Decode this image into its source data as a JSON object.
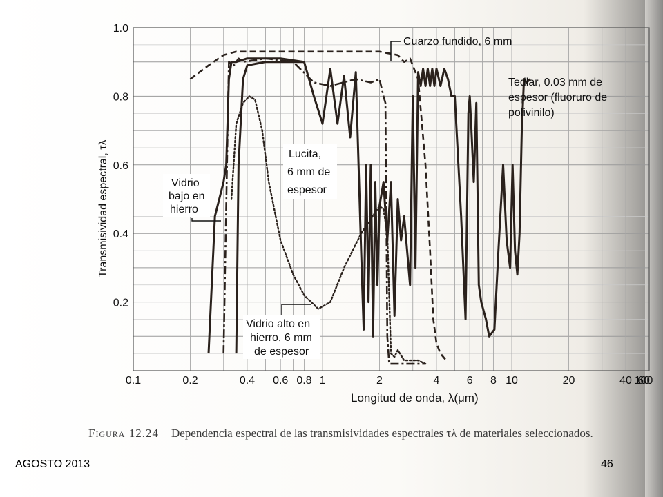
{
  "chart_data": {
    "type": "line",
    "xlabel": "Longitud de onda, λ(μm)",
    "ylabel": "Transmisividad espectral, τλ",
    "xscale": "log",
    "xlim": [
      0.1,
      100
    ],
    "ylim": [
      0,
      1.0
    ],
    "grid": true,
    "xticks": [
      0.1,
      0.2,
      0.4,
      0.6,
      0.8,
      1,
      2,
      4,
      6,
      8,
      10,
      20,
      40,
      60,
      100
    ],
    "xtick_labels": [
      "0.1",
      "0.2",
      "0.4",
      "0.6",
      "0.8",
      "1",
      "2",
      "4",
      "6",
      "8",
      "10",
      "20",
      "40",
      "60",
      "100"
    ],
    "yticks": [
      0.2,
      0.4,
      0.6,
      0.8,
      1.0
    ],
    "ytick_labels": [
      "0.2",
      "0.4",
      "0.6",
      "0.8",
      "1.0"
    ],
    "series": [
      {
        "name": "Cuarzo fundido, 6 mm",
        "style": "dashed",
        "x": [
          0.2,
          0.25,
          0.3,
          0.35,
          0.5,
          1.0,
          2.0,
          2.5,
          2.7,
          2.9,
          3.2,
          3.5,
          3.7,
          3.85,
          4.0,
          4.2,
          4.5
        ],
        "y": [
          0.85,
          0.89,
          0.92,
          0.93,
          0.93,
          0.93,
          0.93,
          0.92,
          0.9,
          0.91,
          0.85,
          0.6,
          0.35,
          0.15,
          0.08,
          0.05,
          0.03
        ]
      },
      {
        "name": "Tedlar, 0.03 mm de espesor (fluoruro de polivinilo)",
        "style": "solid",
        "x": [
          0.35,
          0.36,
          0.38,
          0.4,
          0.5,
          0.7,
          0.8,
          0.9,
          1.0,
          1.1,
          1.2,
          1.3,
          1.4,
          1.5,
          1.6,
          1.65,
          1.7,
          1.75,
          1.8,
          1.85,
          1.9,
          1.95,
          2.0,
          2.1,
          2.2,
          2.3,
          2.4,
          2.5,
          2.6,
          2.7,
          2.8,
          2.9,
          3.0,
          3.1,
          3.2,
          3.3,
          3.4,
          3.5,
          3.6,
          3.7,
          3.8,
          3.9,
          4.0,
          4.2,
          4.4,
          4.6,
          4.8,
          5.0,
          5.4,
          5.7,
          5.9,
          6.0,
          6.1,
          6.3,
          6.5,
          6.7,
          6.9,
          7.3,
          7.6,
          8.1,
          8.5,
          9.0,
          9.4,
          9.8,
          10.1,
          10.4,
          10.7,
          11.0,
          11.3,
          11.6,
          12.0,
          12.5
        ],
        "y": [
          0.05,
          0.6,
          0.85,
          0.89,
          0.9,
          0.9,
          0.9,
          0.8,
          0.72,
          0.88,
          0.72,
          0.86,
          0.68,
          0.87,
          0.35,
          0.12,
          0.6,
          0.2,
          0.6,
          0.1,
          0.55,
          0.25,
          0.48,
          0.55,
          0.38,
          0.55,
          0.16,
          0.5,
          0.38,
          0.45,
          0.35,
          0.25,
          0.8,
          0.3,
          0.87,
          0.83,
          0.88,
          0.83,
          0.88,
          0.83,
          0.88,
          0.83,
          0.88,
          0.83,
          0.88,
          0.85,
          0.8,
          0.8,
          0.45,
          0.15,
          0.75,
          0.8,
          0.72,
          0.55,
          0.78,
          0.25,
          0.2,
          0.15,
          0.1,
          0.12,
          0.35,
          0.6,
          0.38,
          0.3,
          0.6,
          0.35,
          0.28,
          0.4,
          0.7,
          0.85,
          0.84,
          0.85
        ]
      },
      {
        "name": "Lucita, 6 mm de espesor",
        "style": "dash-dot",
        "x": [
          0.3,
          0.32,
          0.34,
          0.36,
          0.38,
          0.5,
          0.7,
          0.9,
          1.1,
          1.5,
          1.8,
          2.0,
          2.1,
          2.15,
          2.2,
          2.25,
          2.5,
          3.0,
          3.5
        ],
        "y": [
          0.05,
          0.9,
          0.89,
          0.91,
          0.9,
          0.91,
          0.9,
          0.84,
          0.83,
          0.85,
          0.84,
          0.85,
          0.8,
          0.78,
          0.1,
          0.02,
          0.02,
          0.02,
          0.02
        ]
      },
      {
        "name": "Vidrio bajo en hierro",
        "style": "solid",
        "x": [
          0.25,
          0.27,
          0.3,
          0.31,
          0.32,
          0.33,
          0.35,
          0.4,
          0.6,
          0.8
        ],
        "y": [
          0.05,
          0.45,
          0.55,
          0.6,
          0.85,
          0.9,
          0.9,
          0.91,
          0.91,
          0.9
        ]
      },
      {
        "name": "Vidrio alto en hierro, 6 mm de espesor",
        "style": "dotted",
        "x": [
          0.33,
          0.35,
          0.38,
          0.41,
          0.44,
          0.48,
          0.52,
          0.6,
          0.7,
          0.8,
          0.95,
          1.1,
          1.3,
          1.6,
          2.0,
          2.1,
          2.2,
          2.3,
          2.4,
          2.5,
          2.7,
          3.0,
          3.2,
          3.5
        ],
        "y": [
          0.5,
          0.72,
          0.78,
          0.8,
          0.79,
          0.7,
          0.55,
          0.38,
          0.28,
          0.22,
          0.18,
          0.2,
          0.3,
          0.4,
          0.48,
          0.47,
          0.4,
          0.05,
          0.04,
          0.06,
          0.03,
          0.03,
          0.03,
          0.02
        ]
      }
    ],
    "annotations": [
      {
        "text": "Cuarzo fundido, 6 mm"
      },
      {
        "text": "Tedlar, 0.03 mm de espesor (fluoruro de polivinilo)"
      },
      {
        "text": "Lucita, 6 mm de espesor"
      },
      {
        "text": "Vidrio bajo en hierro"
      },
      {
        "text": "Vidrio alto en hierro, 6 mm de espesor"
      }
    ]
  },
  "chart_text": {
    "label_cuarzo": "Cuarzo fundido, 6 mm",
    "label_tedlar_1": "Tedlar, 0.03 mm de",
    "label_tedlar_2": "espesor (fluoruro de",
    "label_tedlar_3": "polivinilo)",
    "label_lucita_1": "Lucita,",
    "label_lucita_2": "6 mm de",
    "label_lucita_3": "espesor",
    "label_vbajo_1": "Vidrio",
    "label_vbajo_2": "bajo en",
    "label_vbajo_3": "hierro",
    "label_valto_1": "Vidrio alto en",
    "label_valto_2": "hierro, 6 mm",
    "label_valto_3": "de espesor",
    "xlabel": "Longitud de onda, λ(μm)",
    "ylabel": "Transmisividad espectral, τλ"
  },
  "caption": {
    "figure": "Figura 12.24",
    "text": "Dependencia espectral de las transmisividades espectrales τλ de materiales seleccionados."
  },
  "footer": {
    "left": "AGOSTO 2013",
    "right": "46"
  }
}
